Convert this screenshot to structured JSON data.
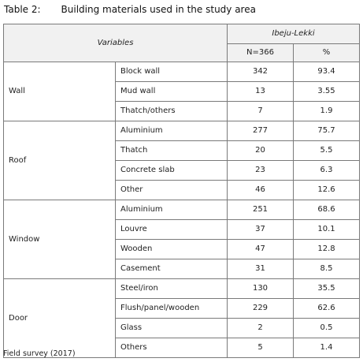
{
  "caption": {
    "label": "Table 2:",
    "title": "Building materials used in the study area"
  },
  "header": {
    "variables": "Variables",
    "location": "Ibeju-Lekki",
    "n": "N=366",
    "percent": "%"
  },
  "groups": [
    {
      "name": "Wall",
      "rows": [
        {
          "item": "Block wall",
          "n": "342",
          "pct": "93.4"
        },
        {
          "item": "Mud wall",
          "n": "13",
          "pct": "3.55"
        },
        {
          "item": "Thatch/others",
          "n": "7",
          "pct": "1.9"
        }
      ]
    },
    {
      "name": "Roof",
      "rows": [
        {
          "item": "Aluminium",
          "n": "277",
          "pct": "75.7"
        },
        {
          "item": "Thatch",
          "n": "20",
          "pct": "5.5"
        },
        {
          "item": "Concrete slab",
          "n": "23",
          "pct": "6.3"
        },
        {
          "item": "Other",
          "n": "46",
          "pct": "12.6"
        }
      ]
    },
    {
      "name": "Window",
      "rows": [
        {
          "item": "Aluminium",
          "n": "251",
          "pct": "68.6"
        },
        {
          "item": "Louvre",
          "n": "37",
          "pct": "10.1"
        },
        {
          "item": "Wooden",
          "n": "47",
          "pct": "12.8"
        },
        {
          "item": "Casement",
          "n": "31",
          "pct": "8.5"
        }
      ]
    },
    {
      "name": "Door",
      "rows": [
        {
          "item": "Steel/iron",
          "n": "130",
          "pct": "35.5"
        },
        {
          "item": "Flush/panel/wooden",
          "n": "229",
          "pct": "62.6"
        },
        {
          "item": "Glass",
          "n": "2",
          "pct": "0.5"
        },
        {
          "item": "Others",
          "n": "5",
          "pct": "1.4"
        }
      ]
    }
  ],
  "source": "Field survey (2017)"
}
